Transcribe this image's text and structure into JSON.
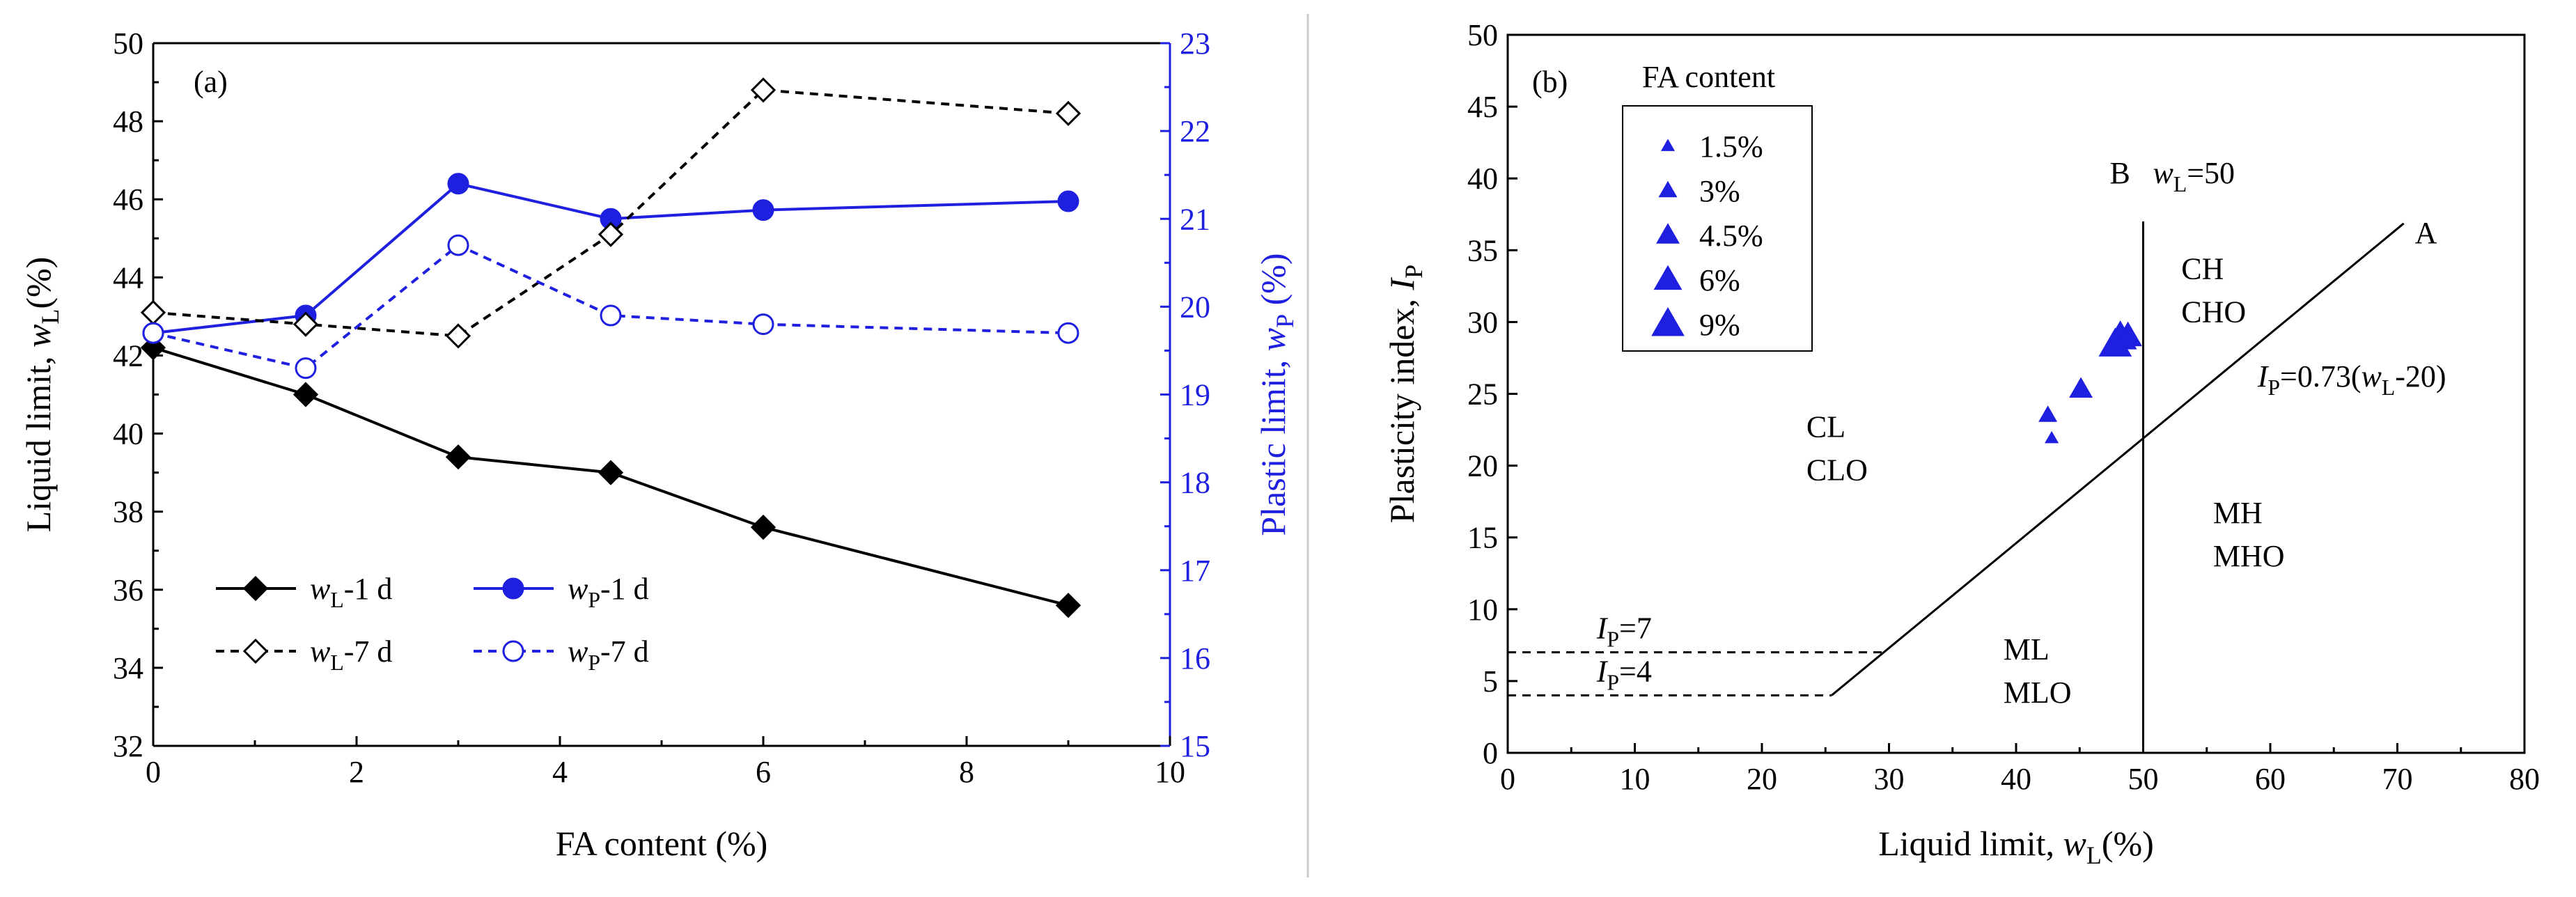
{
  "chart_data": [
    {
      "type": "line",
      "panel_label": "(a)",
      "xlabel": "FA content (%)",
      "ylabel_left_main": "Liquid limit, ",
      "ylabel_left_var": "w",
      "ylabel_left_sub": "L",
      "ylabel_left_unit": "(%)",
      "ylabel_right_main": "Plastic limit, ",
      "ylabel_right_var": "w",
      "ylabel_right_sub": "P",
      "ylabel_right_unit": " (%)",
      "xlim": [
        0,
        10
      ],
      "ylim_left": [
        32,
        50
      ],
      "ylim_right": [
        15,
        23
      ],
      "x_ticks": [
        0,
        2,
        4,
        6,
        8,
        10
      ],
      "y_ticks_left": [
        32,
        34,
        36,
        38,
        40,
        42,
        44,
        46,
        48,
        50
      ],
      "y_ticks_right": [
        15,
        16,
        17,
        18,
        19,
        20,
        21,
        22,
        23
      ],
      "x": [
        0,
        1.5,
        3,
        4.5,
        6,
        9
      ],
      "series": [
        {
          "name": "wL-1 d",
          "var": "w",
          "sub": "L",
          "suffix": "-1 d",
          "axis": "left",
          "color": "#000000",
          "marker": "diamond-filled",
          "dash": false,
          "values": [
            42.2,
            41.0,
            39.4,
            39.0,
            37.6,
            35.6
          ]
        },
        {
          "name": "wP-1 d",
          "var": "w",
          "sub": "P",
          "suffix": "-1 d",
          "axis": "right",
          "color": "#1f1fdf",
          "marker": "circle-filled",
          "dash": false,
          "values": [
            19.7,
            19.9,
            21.4,
            21.0,
            21.1,
            21.2
          ]
        },
        {
          "name": "wL-7 d",
          "var": "w",
          "sub": "L",
          "suffix": "-7 d",
          "axis": "left",
          "color": "#000000",
          "marker": "diamond-open",
          "dash": true,
          "values": [
            43.1,
            42.8,
            42.5,
            45.1,
            48.8,
            48.2
          ]
        },
        {
          "name": "wP-7 d",
          "var": "w",
          "sub": "P",
          "suffix": "-7 d",
          "axis": "right",
          "color": "#1f1fdf",
          "marker": "circle-open",
          "dash": true,
          "values": [
            19.7,
            19.3,
            20.7,
            19.9,
            19.8,
            19.7
          ]
        }
      ],
      "legend_position": "bottom-left"
    },
    {
      "type": "scatter",
      "panel_label": "(b)",
      "xlabel_main": "Liquid limit, ",
      "xlabel_var": "w",
      "xlabel_sub": "L",
      "xlabel_unit": "(%)",
      "ylabel_main": "Plasticity index, ",
      "ylabel_var": "I",
      "ylabel_sub": "P",
      "xlim": [
        0,
        80
      ],
      "ylim": [
        0,
        50
      ],
      "x_ticks": [
        0,
        10,
        20,
        30,
        40,
        50,
        60,
        70,
        80
      ],
      "y_ticks": [
        0,
        5,
        10,
        15,
        20,
        25,
        30,
        35,
        40,
        45,
        50
      ],
      "legend_title": "FA content",
      "legend_position": "top-left",
      "legend_entries": [
        {
          "label": "1.5%",
          "size": 1
        },
        {
          "label": "3%",
          "size": 2
        },
        {
          "label": "4.5%",
          "size": 3
        },
        {
          "label": "6%",
          "size": 4
        },
        {
          "label": "9%",
          "size": 5
        }
      ],
      "points": [
        {
          "fa": "1.5%",
          "size": 1,
          "x": 42.8,
          "y": 21.9
        },
        {
          "fa": "3%",
          "size": 2,
          "x": 42.5,
          "y": 23.5
        },
        {
          "fa": "4.5%",
          "size": 3,
          "x": 45.1,
          "y": 25.3
        },
        {
          "fa": "6%",
          "size": 4,
          "x": 48.8,
          "y": 29.0
        },
        {
          "fa": "9%",
          "size": 5,
          "x": 48.2,
          "y": 28.9
        },
        {
          "fa": "9%",
          "size": 5,
          "x": 47.8,
          "y": 28.4
        }
      ],
      "a_line": {
        "label": "A",
        "x_start": 25.5,
        "x_end": 70.5,
        "equation_parts": [
          "I",
          "P",
          "=0.73(",
          "w",
          "L",
          "-20)"
        ]
      },
      "b_line": {
        "label": "B",
        "x": 50,
        "y_end": 37,
        "eq_var": "w",
        "eq_sub": "L",
        "eq_rest": "=50"
      },
      "ip7_line": {
        "y": 7,
        "x_end": 29.6,
        "var": "I",
        "sub": "P",
        "rest": "=7"
      },
      "ip4_line": {
        "y": 4,
        "x_end": 25.5,
        "var": "I",
        "sub": "P",
        "rest": "=4"
      },
      "zones": [
        {
          "line1": "CH",
          "line2": "CHO",
          "x": 53,
          "y": 33
        },
        {
          "line1": "CL",
          "line2": "CLO",
          "x": 23.5,
          "y": 22
        },
        {
          "line1": "MH",
          "line2": "MHO",
          "x": 55.5,
          "y": 16
        },
        {
          "line1": "ML",
          "line2": "MLO",
          "x": 39,
          "y": 6.5
        }
      ]
    }
  ]
}
